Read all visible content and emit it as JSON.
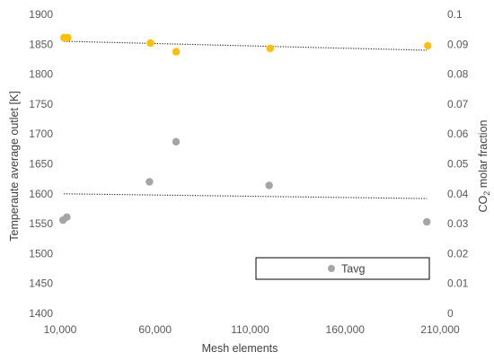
{
  "chart_data": {
    "type": "scatter",
    "xlabel": "Mesh elements",
    "ylabel_left": "Temperaute average outlet [K]",
    "ylabel_right_prefix": "CO",
    "ylabel_right_sub": "2",
    "ylabel_right_suffix": " molar fraction",
    "xlim": [
      10000,
      210000
    ],
    "x_ticks": [
      10000,
      60000,
      110000,
      160000,
      210000
    ],
    "x_tick_labels": [
      "10,000",
      "60,000",
      "110,000",
      "160,000",
      "210,000"
    ],
    "ylim_left": [
      1400,
      1900
    ],
    "y_left_ticks": [
      1400,
      1450,
      1500,
      1550,
      1600,
      1650,
      1700,
      1750,
      1800,
      1850,
      1900
    ],
    "y_left_tick_labels": [
      "1400",
      "1450",
      "1500",
      "1550",
      "1600",
      "1650",
      "1700",
      "1750",
      "1800",
      "1850",
      "1900"
    ],
    "ylim_right": [
      0,
      0.1
    ],
    "y_right_ticks": [
      0,
      0.01,
      0.02,
      0.03,
      0.04,
      0.05,
      0.06,
      0.07,
      0.08,
      0.09,
      0.1
    ],
    "y_right_tick_labels": [
      "0",
      "0.01",
      "0.02",
      "0.03",
      "0.04",
      "0.05",
      "0.06",
      "0.07",
      "0.08",
      "0.09",
      "0.1"
    ],
    "legend_position": "bottom-right",
    "series": [
      {
        "name": "Tavg",
        "axis": "left",
        "color": "#a5a5a5",
        "x": [
          11500,
          13500,
          57000,
          71000,
          120000,
          203000
        ],
        "y": [
          1556,
          1561,
          1620,
          1687,
          1614,
          1553
        ],
        "trendline": {
          "style": "dotted",
          "x": [
            12000,
            203000
          ],
          "y": [
            1600,
            1592
          ]
        }
      },
      {
        "name": "",
        "axis": "right",
        "color": "#ffc000",
        "x": [
          12000,
          14000,
          57500,
          71000,
          120500,
          203500
        ],
        "y": [
          0.0922,
          0.0922,
          0.0904,
          0.0875,
          0.0886,
          0.0895
        ],
        "trendline": {
          "style": "dotted",
          "x": [
            12000,
            203000
          ],
          "y": [
            0.091,
            0.088
          ]
        }
      }
    ]
  }
}
